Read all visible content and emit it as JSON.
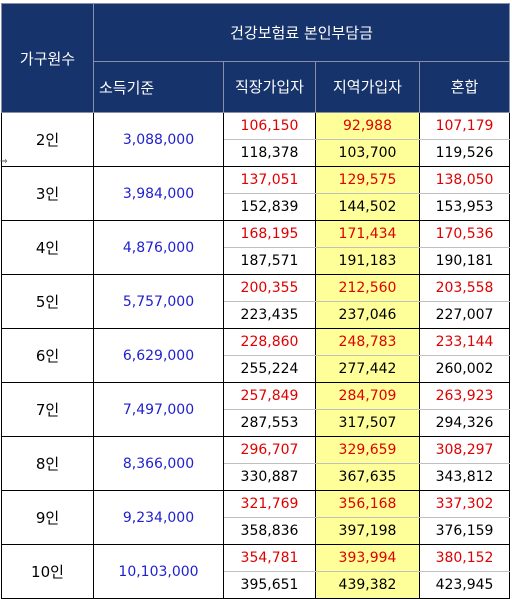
{
  "header": {
    "household": "가구원수",
    "title": "건강보험료 본인부담금",
    "income": "소득기준",
    "employee": "직장가입자",
    "regional": "지역가입자",
    "mixed": "혼합"
  },
  "groups": [
    {
      "name": "2인",
      "base": "3,088,000",
      "top": [
        "106,150",
        "92,988",
        "107,179"
      ],
      "bottom": [
        "118,378",
        "103,700",
        "119,526"
      ]
    },
    {
      "name": "3인",
      "base": "3,984,000",
      "top": [
        "137,051",
        "129,575",
        "138,050"
      ],
      "bottom": [
        "152,839",
        "144,502",
        "153,953"
      ]
    },
    {
      "name": "4인",
      "base": "4,876,000",
      "top": [
        "168,195",
        "171,434",
        "170,536"
      ],
      "bottom": [
        "187,571",
        "191,183",
        "190,181"
      ]
    },
    {
      "name": "5인",
      "base": "5,757,000",
      "top": [
        "200,355",
        "212,560",
        "203,558"
      ],
      "bottom": [
        "223,435",
        "237,046",
        "227,007"
      ]
    },
    {
      "name": "6인",
      "base": "6,629,000",
      "top": [
        "228,860",
        "248,783",
        "233,144"
      ],
      "bottom": [
        "255,224",
        "277,442",
        "260,002"
      ]
    },
    {
      "name": "7인",
      "base": "7,497,000",
      "top": [
        "257,849",
        "284,709",
        "263,923"
      ],
      "bottom": [
        "287,553",
        "317,507",
        "294,326"
      ]
    },
    {
      "name": "8인",
      "base": "8,366,000",
      "top": [
        "296,707",
        "329,659",
        "308,297"
      ],
      "bottom": [
        "330,887",
        "367,635",
        "343,812"
      ]
    },
    {
      "name": "9인",
      "base": "9,234,000",
      "top": [
        "321,769",
        "356,168",
        "337,302"
      ],
      "bottom": [
        "358,836",
        "397,198",
        "376,159"
      ]
    },
    {
      "name": "10인",
      "base": "10,103,000",
      "top": [
        "354,781",
        "393,994",
        "380,152"
      ],
      "bottom": [
        "395,651",
        "439,382",
        "423,945"
      ]
    }
  ],
  "colors": {
    "header_bg": "#17336b",
    "red": "#e00000",
    "blue": "#1f1fd0",
    "highlight": "#ffff99"
  },
  "icons": {
    "row_marker": "arrow-right-icon"
  }
}
